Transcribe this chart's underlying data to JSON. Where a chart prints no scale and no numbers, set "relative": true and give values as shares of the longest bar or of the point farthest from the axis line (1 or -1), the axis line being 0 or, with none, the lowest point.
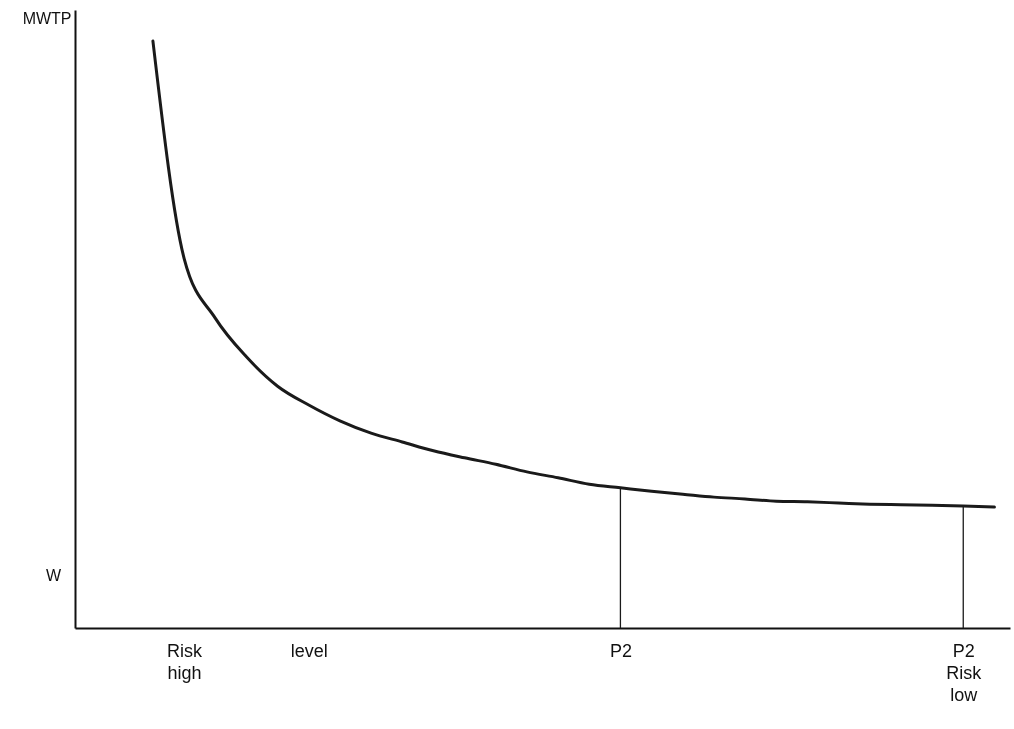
{
  "chart_data": {
    "type": "line",
    "relative": true,
    "ylabel": "MWTP",
    "categories": [
      null,
      null,
      null,
      "Risk\nhigh",
      null,
      null,
      null,
      "level",
      null,
      null,
      null,
      null,
      null,
      null,
      null,
      null,
      null,
      "P2",
      null,
      null,
      null,
      null,
      null,
      null,
      null,
      null,
      null,
      null,
      "P2\nRisk\nlow",
      null
    ],
    "series": [
      {
        "color": "#1a1a1a",
        "values": [
          null,
          null,
          1,
          0.63,
          0.528,
          0.462,
          0.412,
          0.38,
          0.353,
          0.332,
          0.317,
          0.302,
          0.29,
          0.279,
          0.266,
          0.256,
          0.245,
          0.239,
          0.233,
          0.228,
          0.223,
          0.22,
          0.216,
          0.215,
          0.213,
          0.211,
          0.21,
          0.209,
          0.208,
          0.206
        ]
      },
      {
        "type": "bar",
        "color": "#1a1a1a",
        "values": [
          null,
          null,
          null,
          null,
          null,
          null,
          null,
          null,
          null,
          null,
          null,
          null,
          null,
          null,
          null,
          null,
          null,
          0.239,
          null,
          null,
          null,
          null,
          null,
          null,
          null,
          null,
          null,
          null,
          0.208,
          null
        ]
      }
    ],
    "annotations": [
      "W"
    ]
  }
}
